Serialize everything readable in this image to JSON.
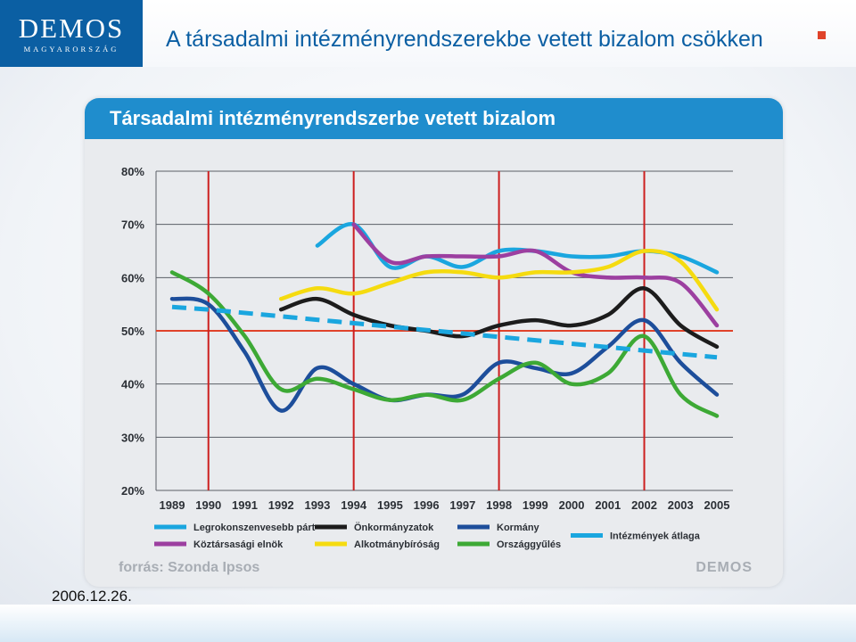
{
  "logo": {
    "name": "DEMOS",
    "subtitle": "MAGYARORSZÁG"
  },
  "slide": {
    "title": "A társadalmi intézményrendszerekbe vetett bizalom csökken",
    "date": "2006.12.26.",
    "colors": {
      "brand": "#0b5fa3",
      "bullet": "#e0432a"
    }
  },
  "card": {
    "source": "forrás: Szonda Ipsos",
    "logo": "DEMOS",
    "header_color": "#1f8dcd"
  },
  "chart_data": {
    "type": "line",
    "title": "Társadalmi intézményrendszerbe vetett bizalom",
    "x": [
      "1989",
      "1990",
      "1991",
      "1992",
      "1993",
      "1994",
      "1995",
      "1996",
      "1997",
      "1998",
      "1999",
      "2000",
      "2001",
      "2002",
      "2003",
      "2005"
    ],
    "y_ticks": [
      "20%",
      "30%",
      "40%",
      "50%",
      "60%",
      "70%",
      "80%"
    ],
    "ylim": [
      20,
      80
    ],
    "grid": true,
    "reference_line": {
      "value": 50,
      "color": "#e0432a"
    },
    "markers": {
      "years": [
        "1990",
        "1994",
        "1998",
        "2002"
      ],
      "color": "#cc1f1f"
    },
    "legend_position": "bottom",
    "series": [
      {
        "name": "Legrokonszenvesebb párt",
        "color": "#1aa6df",
        "dashed": false,
        "values": [
          null,
          null,
          null,
          null,
          66,
          70,
          62,
          64,
          62,
          65,
          65,
          64,
          64,
          65,
          64,
          61
        ]
      },
      {
        "name": "Önkormányzatok",
        "color": "#1c1c1c",
        "dashed": false,
        "values": [
          null,
          null,
          null,
          54,
          56,
          53,
          51,
          50,
          49,
          51,
          52,
          51,
          53,
          58,
          51,
          47
        ]
      },
      {
        "name": "Kormány",
        "color": "#1d4e9b",
        "dashed": false,
        "values": [
          56,
          55,
          46,
          35,
          43,
          40,
          37,
          38,
          38,
          44,
          43,
          42,
          47,
          52,
          44,
          38
        ]
      },
      {
        "name": "Köztársasági elnök",
        "color": "#9c3fa0",
        "dashed": false,
        "values": [
          null,
          null,
          null,
          null,
          null,
          70,
          63,
          64,
          64,
          64,
          65,
          61,
          60,
          60,
          59,
          51
        ]
      },
      {
        "name": "Alkotmánybíróság",
        "color": "#f5db10",
        "dashed": false,
        "values": [
          null,
          null,
          null,
          56,
          58,
          57,
          59,
          61,
          61,
          60,
          61,
          61,
          62,
          65,
          63,
          54
        ]
      },
      {
        "name": "Országgyűlés",
        "color": "#3da935",
        "dashed": false,
        "values": [
          61,
          57,
          49,
          39,
          41,
          39,
          37,
          38,
          37,
          41,
          44,
          40,
          42,
          49,
          38,
          34
        ]
      },
      {
        "name": "Intézmények átlaga",
        "color": "#1aa6df",
        "dashed": true,
        "values": [
          54.5,
          54,
          null,
          null,
          null,
          null,
          null,
          null,
          null,
          null,
          null,
          null,
          null,
          null,
          null,
          45
        ]
      }
    ]
  }
}
